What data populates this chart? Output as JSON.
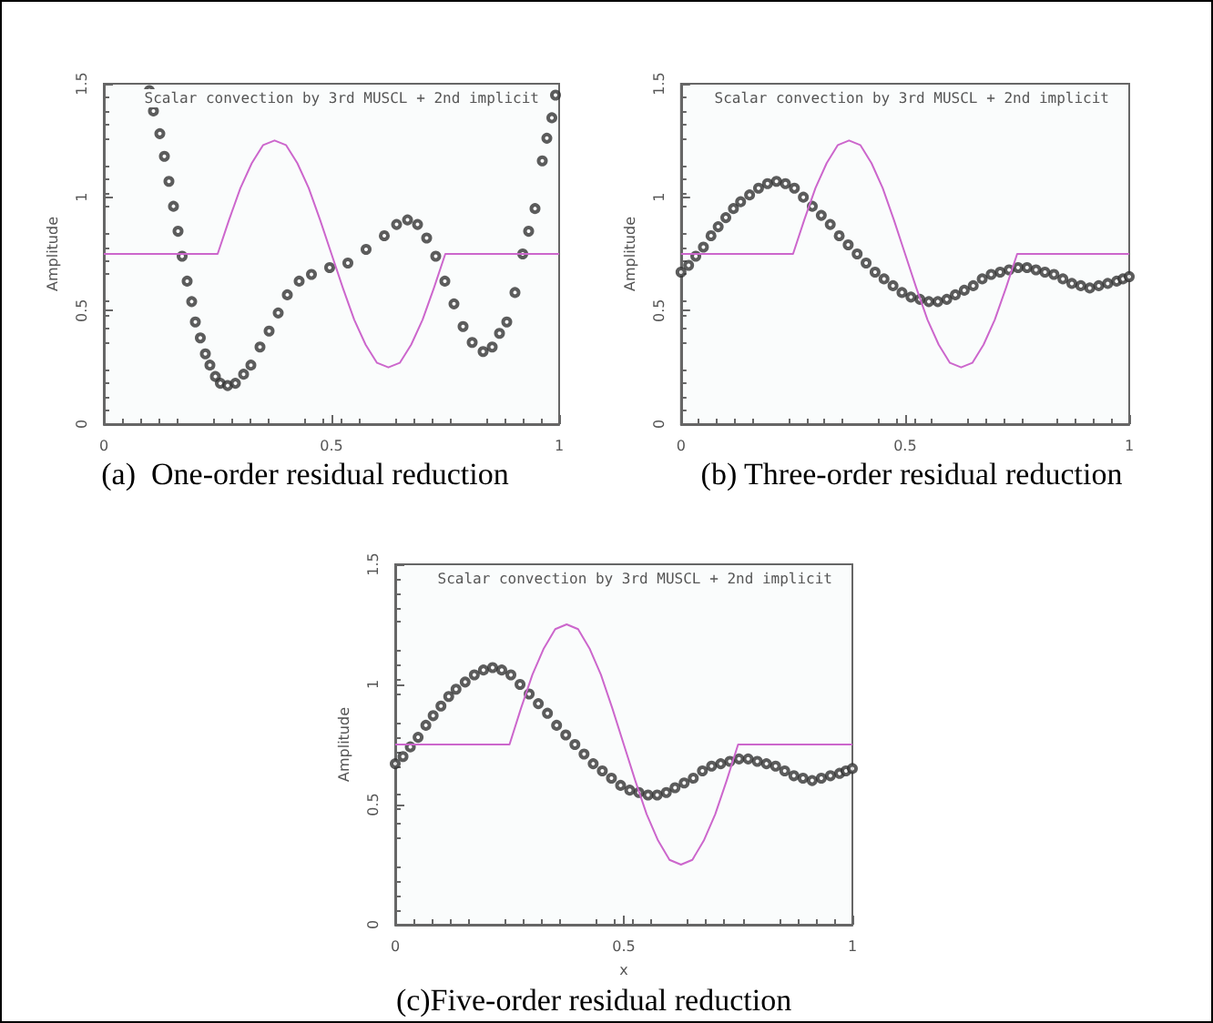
{
  "chart_data": [
    {
      "type": "line",
      "title": "Scalar convection by 3rd MUSCL + 2nd implicit",
      "ylabel": "Amplitude",
      "annotations": [
        "(a)  One-order residual reduction"
      ],
      "xlim": [
        0,
        1
      ],
      "ylim": [
        0,
        1.5
      ],
      "xticks": [
        0,
        0.5,
        1
      ],
      "yticks": [
        0,
        0.5,
        1,
        1.5
      ],
      "grid": false,
      "series": [
        {
          "type": "line",
          "color": "#cc66cc",
          "line_style": "solid",
          "x": [
            0,
            0.25,
            0.275,
            0.3,
            0.325,
            0.35,
            0.375,
            0.4,
            0.425,
            0.45,
            0.475,
            0.5,
            0.525,
            0.55,
            0.575,
            0.6,
            0.625,
            0.65,
            0.675,
            0.7,
            0.725,
            0.75,
            1
          ],
          "values": [
            0.75,
            0.75,
            0.9,
            1.04,
            1.15,
            1.23,
            1.25,
            1.23,
            1.15,
            1.04,
            0.9,
            0.75,
            0.6,
            0.46,
            0.35,
            0.27,
            0.25,
            0.27,
            0.35,
            0.46,
            0.6,
            0.75,
            0.75
          ]
        },
        {
          "type": "scatter",
          "color": "#333333",
          "marker": "circle",
          "x": [
            0.1,
            0.109,
            0.123,
            0.133,
            0.143,
            0.153,
            0.163,
            0.172,
            0.183,
            0.193,
            0.201,
            0.212,
            0.223,
            0.233,
            0.245,
            0.256,
            0.272,
            0.289,
            0.307,
            0.323,
            0.343,
            0.363,
            0.383,
            0.403,
            0.429,
            0.456,
            0.496,
            0.536,
            0.576,
            0.616,
            0.643,
            0.667,
            0.689,
            0.709,
            0.729,
            0.749,
            0.769,
            0.789,
            0.809,
            0.833,
            0.853,
            0.869,
            0.885,
            0.903,
            0.92,
            0.933,
            0.947,
            0.963,
            0.973,
            0.984,
            0.992
          ],
          "values": [
            1.47,
            1.38,
            1.28,
            1.18,
            1.07,
            0.96,
            0.85,
            0.74,
            0.63,
            0.54,
            0.45,
            0.38,
            0.31,
            0.26,
            0.21,
            0.18,
            0.17,
            0.18,
            0.22,
            0.26,
            0.34,
            0.41,
            0.49,
            0.57,
            0.63,
            0.66,
            0.69,
            0.71,
            0.77,
            0.83,
            0.88,
            0.9,
            0.88,
            0.82,
            0.74,
            0.63,
            0.53,
            0.43,
            0.36,
            0.32,
            0.34,
            0.4,
            0.45,
            0.58,
            0.75,
            0.85,
            0.95,
            1.16,
            1.26,
            1.35,
            1.45
          ]
        }
      ]
    },
    {
      "type": "line",
      "title": "Scalar convection by 3rd MUSCL + 2nd implicit",
      "ylabel": "Amplitude",
      "annotations": [
        "(b) Three-order residual reduction"
      ],
      "xlim": [
        0,
        1
      ],
      "ylim": [
        0,
        1.5
      ],
      "xticks": [
        0,
        0.5,
        1
      ],
      "yticks": [
        0,
        0.5,
        1,
        1.5
      ],
      "grid": false,
      "series": [
        {
          "type": "line",
          "color": "#cc66cc",
          "line_style": "solid",
          "x": [
            0,
            0.25,
            0.275,
            0.3,
            0.325,
            0.35,
            0.375,
            0.4,
            0.425,
            0.45,
            0.475,
            0.5,
            0.525,
            0.55,
            0.575,
            0.6,
            0.625,
            0.65,
            0.675,
            0.7,
            0.725,
            0.75,
            1
          ],
          "values": [
            0.75,
            0.75,
            0.9,
            1.04,
            1.15,
            1.23,
            1.25,
            1.23,
            1.15,
            1.04,
            0.9,
            0.75,
            0.6,
            0.46,
            0.35,
            0.27,
            0.25,
            0.27,
            0.35,
            0.46,
            0.6,
            0.75,
            0.75
          ]
        },
        {
          "type": "scatter",
          "color": "#333333",
          "marker": "circle",
          "x": [
            0,
            0.017,
            0.033,
            0.05,
            0.067,
            0.083,
            0.1,
            0.117,
            0.133,
            0.153,
            0.173,
            0.193,
            0.213,
            0.233,
            0.253,
            0.273,
            0.293,
            0.313,
            0.333,
            0.353,
            0.373,
            0.393,
            0.413,
            0.433,
            0.453,
            0.473,
            0.493,
            0.513,
            0.533,
            0.553,
            0.573,
            0.593,
            0.612,
            0.632,
            0.652,
            0.672,
            0.692,
            0.712,
            0.732,
            0.752,
            0.772,
            0.792,
            0.812,
            0.832,
            0.852,
            0.872,
            0.892,
            0.912,
            0.932,
            0.952,
            0.972,
            0.986,
            1
          ],
          "values": [
            0.67,
            0.7,
            0.74,
            0.78,
            0.83,
            0.87,
            0.91,
            0.95,
            0.98,
            1.01,
            1.04,
            1.06,
            1.07,
            1.06,
            1.04,
            1.0,
            0.96,
            0.92,
            0.88,
            0.83,
            0.79,
            0.75,
            0.71,
            0.67,
            0.64,
            0.61,
            0.58,
            0.56,
            0.55,
            0.54,
            0.54,
            0.55,
            0.57,
            0.59,
            0.61,
            0.64,
            0.66,
            0.67,
            0.68,
            0.69,
            0.69,
            0.68,
            0.67,
            0.66,
            0.64,
            0.62,
            0.61,
            0.6,
            0.61,
            0.62,
            0.63,
            0.64,
            0.65
          ]
        }
      ]
    },
    {
      "type": "line",
      "title": "Scalar convection by 3rd MUSCL + 2nd implicit",
      "xlabel": "x",
      "ylabel": "Amplitude",
      "annotations": [
        "(c)Five-order residual reduction"
      ],
      "xlim": [
        0,
        1
      ],
      "ylim": [
        0,
        1.5
      ],
      "xticks": [
        0,
        0.5,
        1
      ],
      "yticks": [
        0,
        0.5,
        1,
        1.5
      ],
      "grid": false,
      "series": [
        {
          "type": "line",
          "color": "#cc66cc",
          "line_style": "solid",
          "x": [
            0,
            0.25,
            0.275,
            0.3,
            0.325,
            0.35,
            0.375,
            0.4,
            0.425,
            0.45,
            0.475,
            0.5,
            0.525,
            0.55,
            0.575,
            0.6,
            0.625,
            0.65,
            0.675,
            0.7,
            0.725,
            0.75,
            1
          ],
          "values": [
            0.75,
            0.75,
            0.9,
            1.04,
            1.15,
            1.23,
            1.25,
            1.23,
            1.15,
            1.04,
            0.9,
            0.75,
            0.6,
            0.46,
            0.35,
            0.27,
            0.25,
            0.27,
            0.35,
            0.46,
            0.6,
            0.75,
            0.75
          ]
        },
        {
          "type": "scatter",
          "color": "#333333",
          "marker": "circle",
          "x": [
            0,
            0.017,
            0.033,
            0.05,
            0.067,
            0.083,
            0.1,
            0.117,
            0.133,
            0.153,
            0.173,
            0.193,
            0.213,
            0.233,
            0.253,
            0.273,
            0.293,
            0.313,
            0.333,
            0.353,
            0.373,
            0.393,
            0.413,
            0.433,
            0.453,
            0.473,
            0.493,
            0.513,
            0.533,
            0.553,
            0.573,
            0.593,
            0.612,
            0.632,
            0.652,
            0.672,
            0.692,
            0.712,
            0.732,
            0.752,
            0.772,
            0.792,
            0.812,
            0.832,
            0.852,
            0.872,
            0.892,
            0.912,
            0.932,
            0.952,
            0.972,
            0.986,
            1
          ],
          "values": [
            0.67,
            0.7,
            0.74,
            0.78,
            0.83,
            0.87,
            0.91,
            0.95,
            0.98,
            1.01,
            1.04,
            1.06,
            1.07,
            1.06,
            1.04,
            1.0,
            0.96,
            0.92,
            0.88,
            0.83,
            0.79,
            0.75,
            0.71,
            0.67,
            0.64,
            0.61,
            0.58,
            0.56,
            0.55,
            0.54,
            0.54,
            0.55,
            0.57,
            0.59,
            0.61,
            0.64,
            0.66,
            0.67,
            0.68,
            0.69,
            0.69,
            0.68,
            0.67,
            0.66,
            0.64,
            0.62,
            0.61,
            0.6,
            0.61,
            0.62,
            0.63,
            0.64,
            0.65
          ]
        }
      ]
    }
  ]
}
